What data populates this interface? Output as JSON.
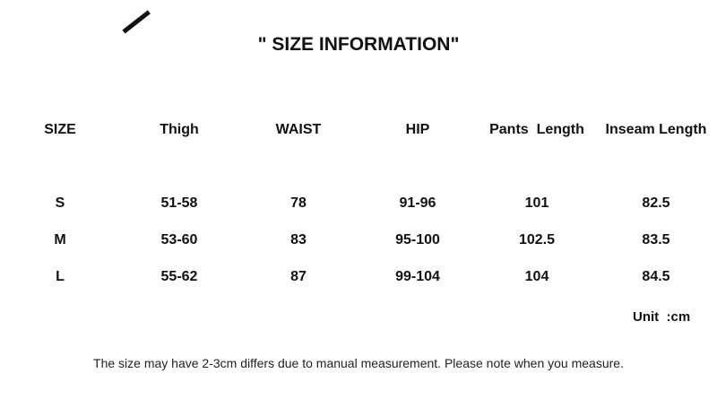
{
  "title": "\" SIZE INFORMATION\"",
  "table": {
    "headers": [
      "SIZE",
      "Thigh",
      "WAIST",
      "HIP",
      "Pants  Length",
      "Inseam Length"
    ],
    "rows": [
      [
        "S",
        "51-58",
        "78",
        "91-96",
        "101",
        "82.5"
      ],
      [
        "M",
        "53-60",
        "83",
        "95-100",
        "102.5",
        "83.5"
      ],
      [
        "L",
        "55-62",
        "87",
        "99-104",
        "104",
        "84.5"
      ]
    ]
  },
  "unit": "Unit  :cm",
  "note": "The size may have 2-3cm differs due to manual measurement. Please note when you measure."
}
